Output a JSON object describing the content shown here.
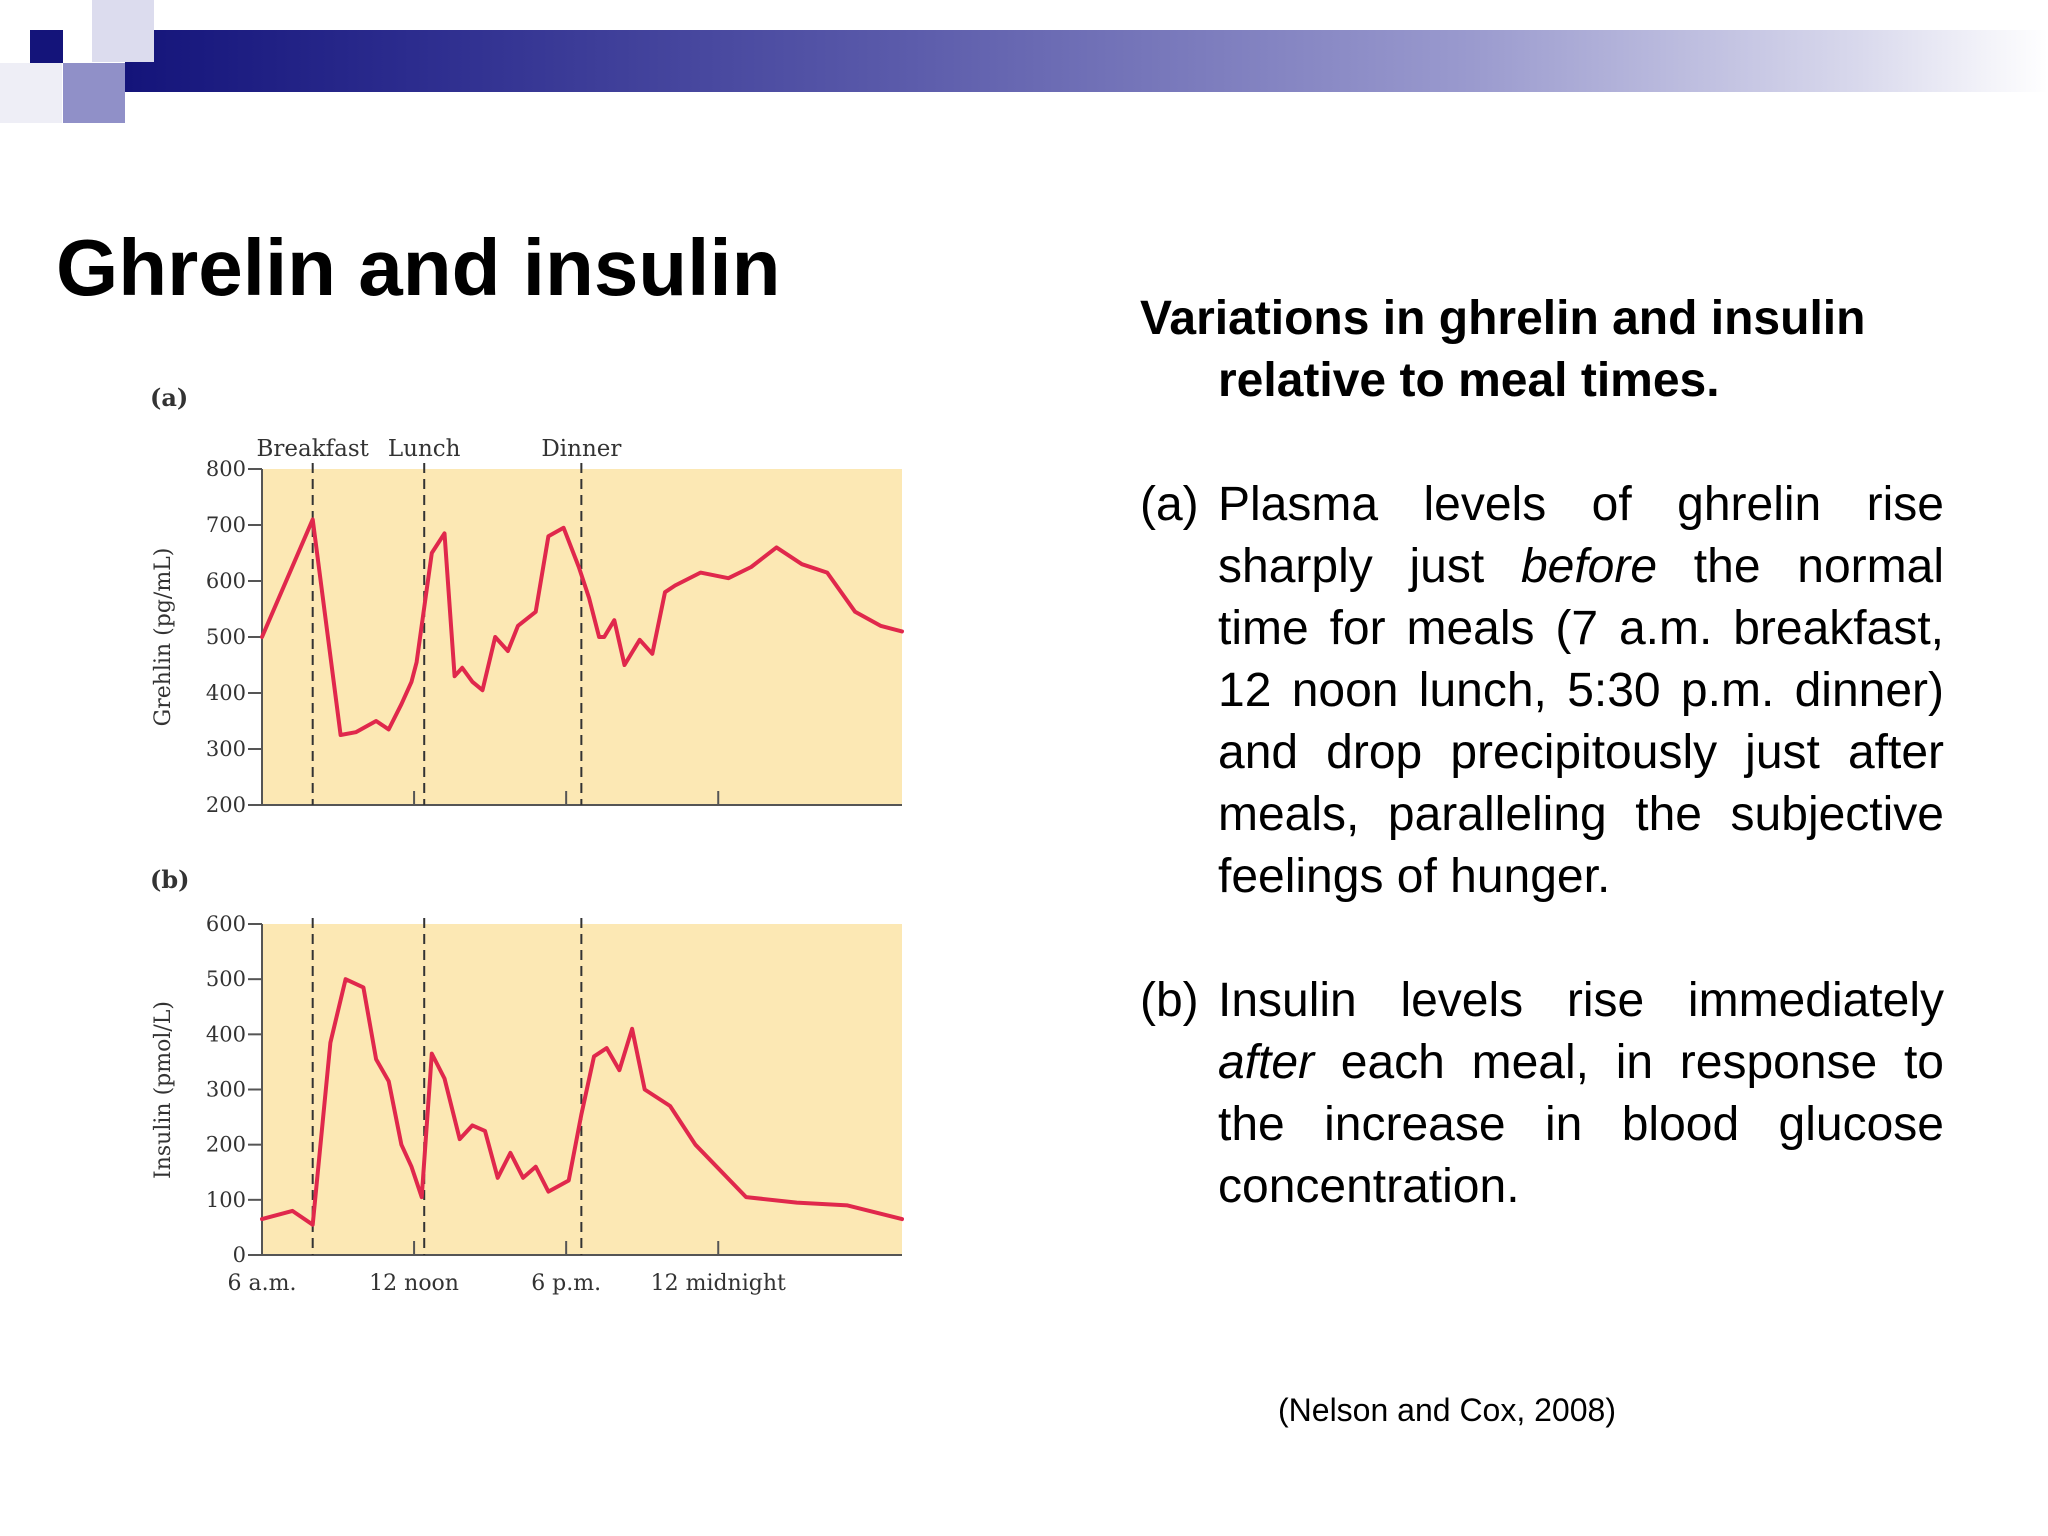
{
  "slide": {
    "title": "Ghrelin and insulin",
    "heading": "Variations in ghrelin and insulin relative to meal times.",
    "para_a": {
      "label": "(a)",
      "pre": "Plasma levels of ghrelin rise sharply just ",
      "em": "before",
      "post": " the normal time for meals (7 a.m. breakfast, 12 noon lunch, 5:30 p.m. dinner) and drop precipitously just after meals, paralleling the subjective feelings of hunger."
    },
    "para_b": {
      "label": "(b)",
      "pre": "Insulin levels rise immediately ",
      "em": "after",
      "post": " each meal, in response to the increase in blood glucose concentration."
    },
    "citation": "(Nelson and Cox, 2008)"
  },
  "colors": {
    "plot_background": "#fce8b4",
    "line": "#e0284c",
    "header_dark": "#14147a"
  },
  "chart_data": [
    {
      "type": "line",
      "panel_label": "(a)",
      "ylabel": "Grehlin (pg/mL)",
      "ylim": [
        200,
        800
      ],
      "yticks": [
        200,
        300,
        400,
        500,
        600,
        700,
        800
      ],
      "xlim": [
        6,
        31.25
      ],
      "meal_markers": [
        {
          "label": "Breakfast",
          "x": 8
        },
        {
          "label": "Lunch",
          "x": 12.4
        },
        {
          "label": "Dinner",
          "x": 18.6
        }
      ],
      "grid": false,
      "series": [
        {
          "x": [
            6,
            8,
            9.1,
            9.7,
            10.5,
            11,
            11.5,
            11.9,
            12.1,
            12.7,
            13.2,
            13.6,
            13.9,
            14.3,
            14.7,
            15.2,
            15.7,
            16.1,
            16.8,
            17.3,
            17.9,
            18.5,
            18.9,
            19.3,
            19.5,
            19.9,
            20.3,
            20.9,
            21.4,
            21.9,
            22.3,
            23.3,
            24.4,
            25.3,
            26.3,
            27.3,
            28.3,
            29.4,
            30.4,
            31.25
          ],
          "y": [
            500,
            710,
            325,
            330,
            350,
            335,
            380,
            420,
            455,
            650,
            685,
            430,
            445,
            420,
            405,
            500,
            475,
            520,
            545,
            680,
            695,
            625,
            570,
            500,
            500,
            530,
            450,
            495,
            470,
            580,
            592,
            615,
            605,
            625,
            660,
            630,
            615,
            545,
            520,
            510
          ]
        }
      ]
    },
    {
      "type": "line",
      "panel_label": "(b)",
      "ylabel": "Insulin (pmol/L)",
      "ylim": [
        0,
        600
      ],
      "yticks": [
        0,
        100,
        200,
        300,
        400,
        500,
        600
      ],
      "xlim": [
        6,
        31.25
      ],
      "xticks": [
        {
          "label": "6 a.m.",
          "x": 6
        },
        {
          "label": "12 noon",
          "x": 12
        },
        {
          "label": "6 p.m.",
          "x": 18
        },
        {
          "label": "12 midnight",
          "x": 24
        }
      ],
      "meal_markers": [
        {
          "label": "Breakfast",
          "x": 8
        },
        {
          "label": "Lunch",
          "x": 12.4
        },
        {
          "label": "Dinner",
          "x": 18.6
        }
      ],
      "grid": false,
      "series": [
        {
          "x": [
            6,
            7.2,
            8,
            8.7,
            9.3,
            10,
            10.5,
            11,
            11.5,
            11.9,
            12.3,
            12.7,
            13.2,
            13.8,
            14.3,
            14.8,
            15.3,
            15.8,
            16.3,
            16.8,
            17.3,
            18.1,
            18.6,
            19.1,
            19.6,
            20.1,
            20.6,
            21.1,
            22.1,
            23.1,
            25.1,
            27.1,
            29.1,
            31.25
          ],
          "y": [
            65,
            80,
            55,
            385,
            500,
            485,
            355,
            315,
            200,
            160,
            105,
            365,
            320,
            210,
            235,
            225,
            140,
            185,
            140,
            160,
            115,
            135,
            255,
            360,
            375,
            335,
            410,
            300,
            270,
            200,
            105,
            95,
            90,
            65
          ]
        }
      ]
    }
  ]
}
